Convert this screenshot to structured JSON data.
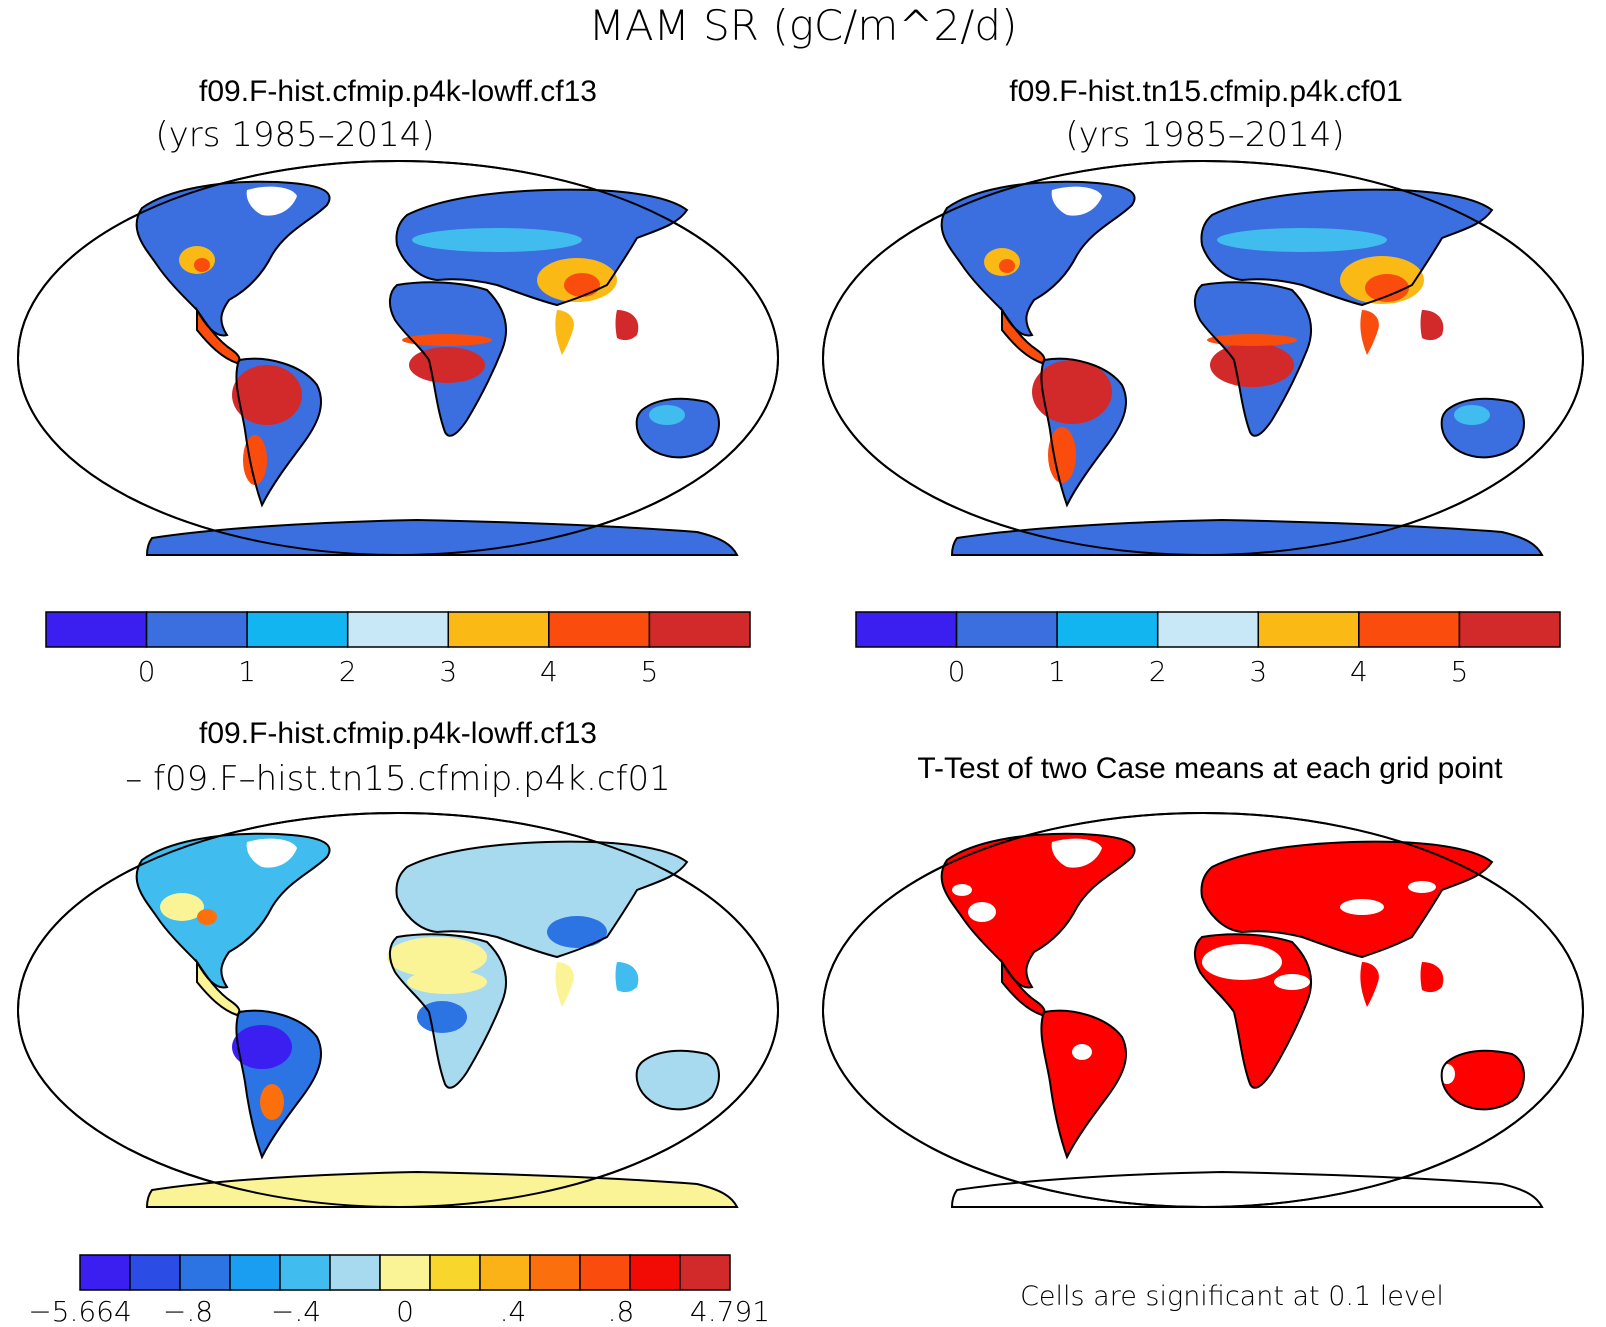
{
  "figure": {
    "title": "MAM SR (gC/m^2/d)"
  },
  "panels": {
    "case1": {
      "title": "f09.F-hist.cfmip.p4k-lowff.cf13",
      "subtitle": "(yrs 1985–2014)"
    },
    "case2": {
      "title": "f09.F-hist.tn15.cfmip.p4k.cf01",
      "subtitle": "(yrs 1985–2014)"
    },
    "diff": {
      "title": "f09.F-hist.cfmip.p4k-lowff.cf13",
      "subtitle": "– f09.F–hist.tn15.cfmip.p4k.cf01"
    },
    "ttest": {
      "title": "T-Test of two Case means at each grid point",
      "note": "Cells are significant at 0.1 level"
    }
  },
  "colorbars": {
    "main": {
      "colors": [
        "#3a1ff0",
        "#3b6fe0",
        "#12b5ef",
        "#c8e8f7",
        "#fbb916",
        "#fa4d0d",
        "#d2292b"
      ],
      "labels": [
        "0",
        "1",
        "2",
        "3",
        "4",
        "5"
      ]
    },
    "diff": {
      "colors": [
        "#3a1ff0",
        "#2b4de6",
        "#2c73e3",
        "#1a9ef1",
        "#40bcee",
        "#a7d9ef",
        "#fbf497",
        "#f9d62b",
        "#fbb216",
        "#fb6f0d",
        "#fa4d0d",
        "#f20a05",
        "#d2292b"
      ],
      "labels": [
        "−5.664",
        "−.8",
        "−.4",
        "0",
        ".4",
        ".8",
        "4.791"
      ]
    },
    "significance_color": "#ff0000"
  }
}
